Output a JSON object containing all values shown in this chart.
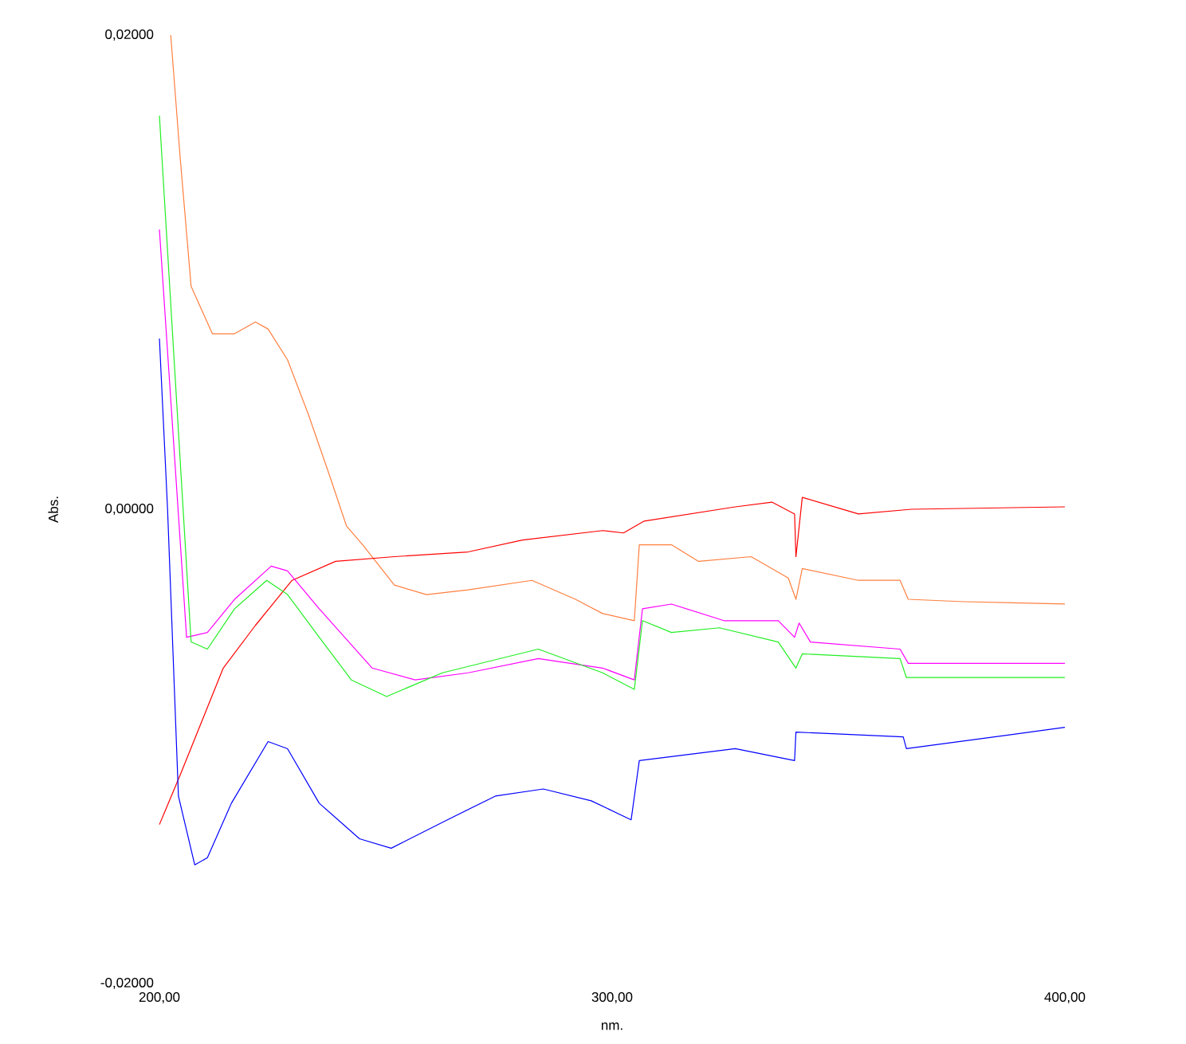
{
  "chart_data": {
    "type": "line",
    "xlabel": "nm.",
    "ylabel": "Abs.",
    "xlim": [
      200,
      400
    ],
    "ylim": [
      -0.02,
      0.02
    ],
    "xticks": [
      {
        "value": 200,
        "label": "200,00"
      },
      {
        "value": 300,
        "label": "300,00"
      },
      {
        "value": 400,
        "label": "400,00"
      }
    ],
    "yticks": [
      {
        "value": -0.02,
        "label": "-0,02000"
      },
      {
        "value": 0,
        "label": "0,00000"
      },
      {
        "value": 0.02,
        "label": "0,02000"
      }
    ],
    "series": [
      {
        "color": "#ff7f3f",
        "x": [
          202.5,
          204.6,
          207,
          211.7,
          216.6,
          221.2,
          224,
          228.3,
          232.9,
          237.8,
          241.3,
          244.9,
          251.9,
          259,
          268.2,
          282.3,
          291.9,
          297.9,
          304.9,
          306,
          313.1,
          319.1,
          330.7,
          338.9,
          340.6,
          342,
          354.4,
          363.6,
          365.4,
          377.7,
          400
        ],
        "values": [
          0.02,
          0.0148,
          0.0094,
          0.0074,
          0.0074,
          0.0079,
          0.0076,
          0.0063,
          0.004,
          0.0013,
          -0.0007,
          -0.0015,
          -0.0032,
          -0.0036,
          -0.0034,
          -0.003,
          -0.0038,
          -0.0044,
          -0.0047,
          -0.0015,
          -0.0015,
          -0.0022,
          -0.002,
          -0.0029,
          -0.0038,
          -0.0025,
          -0.003,
          -0.003,
          -0.0038,
          -0.0039,
          -0.004
        ]
      },
      {
        "color": "#ff0000",
        "x": [
          200,
          204.6,
          214.1,
          221.2,
          229.3,
          238.9,
          251.9,
          268.2,
          280.2,
          297.9,
          302.5,
          307.1,
          327.2,
          335.3,
          340.3,
          340.6,
          342,
          354.4,
          366.1,
          400
        ],
        "values": [
          -0.0133,
          -0.0112,
          -0.0067,
          -0.0049,
          -0.003,
          -0.0022,
          -0.002,
          -0.0018,
          -0.0013,
          -0.0009,
          -0.001,
          -0.0005,
          0.0001,
          0.0003,
          -0.0002,
          -0.002,
          0.0005,
          -0.0002,
          0,
          0.0001
        ]
      },
      {
        "color": "#ff00ff",
        "x": [
          200,
          206,
          210.6,
          216.6,
          224.7,
          228.3,
          235.3,
          247,
          256.5,
          268.2,
          283.7,
          297.9,
          304.9,
          306.7,
          313.1,
          324.7,
          336.7,
          340.3,
          341.3,
          343.8,
          363.6,
          365.4,
          400
        ],
        "values": [
          0.0118,
          -0.0054,
          -0.0052,
          -0.0038,
          -0.0024,
          -0.0026,
          -0.0042,
          -0.0067,
          -0.0072,
          -0.0069,
          -0.0063,
          -0.0067,
          -0.0072,
          -0.0042,
          -0.004,
          -0.0047,
          -0.0047,
          -0.0054,
          -0.0048,
          -0.0056,
          -0.0059,
          -0.0065,
          -0.0065
        ]
      },
      {
        "color": "#22ee22",
        "x": [
          200,
          207,
          210.6,
          216.6,
          223.7,
          228.3,
          235.3,
          242.4,
          250.2,
          262.5,
          283.7,
          297.9,
          304.9,
          306.7,
          313.1,
          323.7,
          336.7,
          340.6,
          342,
          363.6,
          365,
          400
        ],
        "values": [
          0.0166,
          -0.0056,
          -0.0059,
          -0.0042,
          -0.003,
          -0.0036,
          -0.0054,
          -0.0072,
          -0.0079,
          -0.0069,
          -0.0059,
          -0.0069,
          -0.0076,
          -0.0047,
          -0.0052,
          -0.005,
          -0.0056,
          -0.0067,
          -0.0061,
          -0.0063,
          -0.0071,
          -0.0071
        ]
      },
      {
        "color": "#0000ff",
        "x": [
          200,
          201.8,
          204.2,
          207.8,
          210.6,
          215.9,
          224,
          228.3,
          235.3,
          244.2,
          251.2,
          263.6,
          274.2,
          284.8,
          295.4,
          304.2,
          306,
          327.2,
          340.3,
          340.6,
          364.3,
          365,
          400
        ],
        "values": [
          0.0072,
          0,
          -0.0121,
          -0.015,
          -0.0147,
          -0.0124,
          -0.0098,
          -0.0101,
          -0.0124,
          -0.0139,
          -0.0143,
          -0.0131,
          -0.0121,
          -0.0118,
          -0.0123,
          -0.0131,
          -0.0106,
          -0.0101,
          -0.0106,
          -0.0094,
          -0.0096,
          -0.0101,
          -0.0092
        ]
      }
    ]
  }
}
